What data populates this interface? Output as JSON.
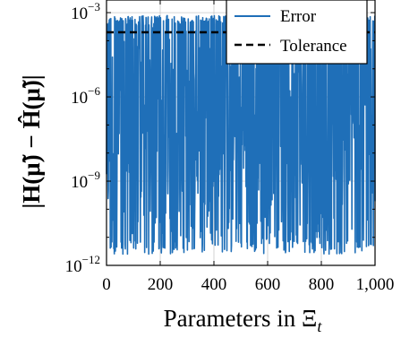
{
  "chart_data": {
    "type": "line",
    "xlabel": "Parameters in Ξ",
    "xlabel_subscript": "t",
    "ylabel": "|H(μ̃) − Ĥ(μ̃)|",
    "x_ticks": [
      "0",
      "200",
      "400",
      "600",
      "800",
      "1,000"
    ],
    "x_tick_values": [
      0,
      200,
      400,
      600,
      800,
      1000
    ],
    "y_ticks": [
      {
        "base": "10",
        "exp": "−12",
        "value": -12
      },
      {
        "base": "10",
        "exp": "−9",
        "value": -9
      },
      {
        "base": "10",
        "exp": "−6",
        "value": -6
      },
      {
        "base": "10",
        "exp": "−3",
        "value": -3
      }
    ],
    "xlim": [
      0,
      1000
    ],
    "ylim_log10": [
      -12,
      -2.55
    ],
    "y_scale": "log",
    "grid": true,
    "legend_position": "top-right",
    "series": [
      {
        "name": "Error",
        "color": "#1f6fb8",
        "style": "solid",
        "point_count": 1000,
        "envelope_log10": {
          "max": -3.1,
          "min": -11.6
        }
      },
      {
        "name": "Tolerance",
        "color": "#000000",
        "style": "dashed",
        "value": 0.0002
      }
    ]
  }
}
